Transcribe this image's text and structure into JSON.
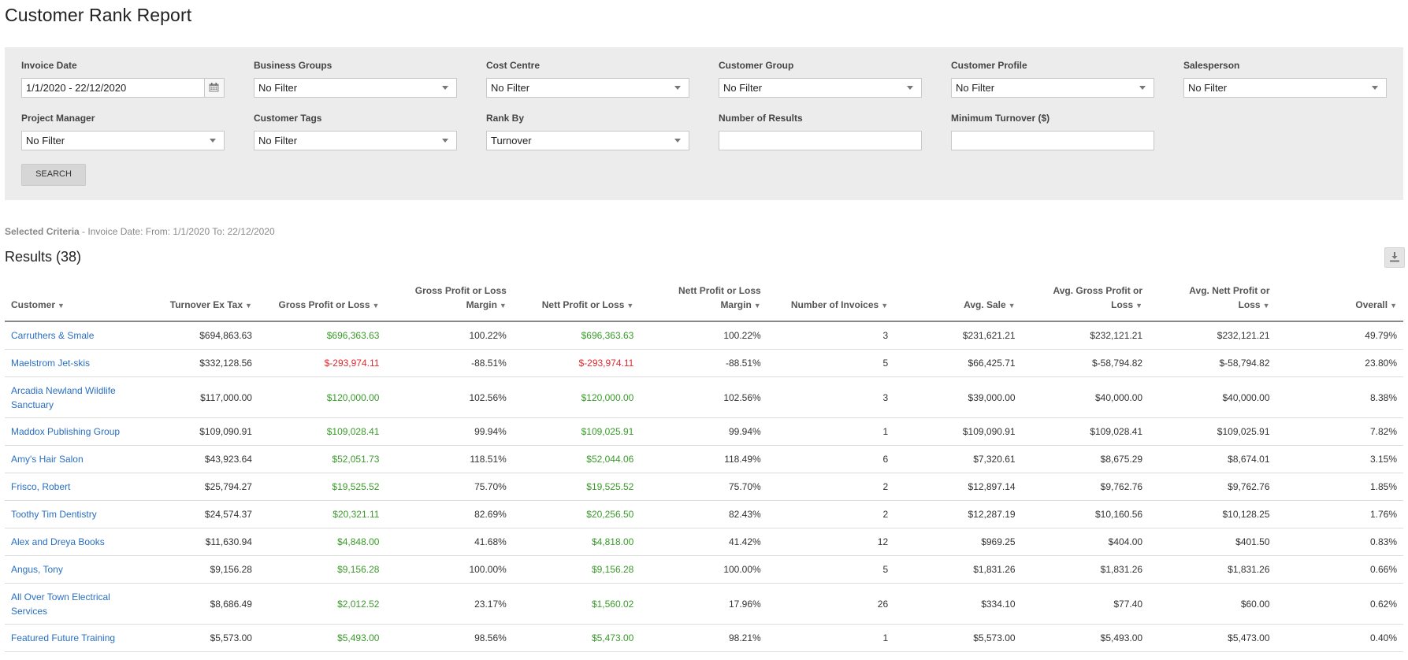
{
  "page": {
    "title": "Customer Rank Report"
  },
  "filters": {
    "invoice_date": {
      "label": "Invoice Date",
      "value": "1/1/2020 - 22/12/2020"
    },
    "business_groups": {
      "label": "Business Groups",
      "value": "No Filter"
    },
    "cost_centre": {
      "label": "Cost Centre",
      "value": "No Filter"
    },
    "customer_group": {
      "label": "Customer Group",
      "value": "No Filter"
    },
    "customer_profile": {
      "label": "Customer Profile",
      "value": "No Filter"
    },
    "salesperson": {
      "label": "Salesperson",
      "value": "No Filter"
    },
    "project_manager": {
      "label": "Project Manager",
      "value": "No Filter"
    },
    "customer_tags": {
      "label": "Customer Tags",
      "value": "No Filter"
    },
    "rank_by": {
      "label": "Rank By",
      "value": "Turnover"
    },
    "number_of_results": {
      "label": "Number of Results",
      "value": ""
    },
    "minimum_turnover": {
      "label": "Minimum Turnover ($)",
      "value": ""
    },
    "search_label": "SEARCH"
  },
  "criteria": {
    "label": "Selected Criteria",
    "text": " - Invoice Date: From: 1/1/2020 To: 22/12/2020"
  },
  "results": {
    "title": "Results (38)",
    "export_icon": "download-icon",
    "columns": {
      "customer": "Customer",
      "turnover": "Turnover Ex Tax",
      "gross": "Gross Profit or Loss",
      "gross_margin_1": "Gross Profit or Loss",
      "gross_margin_2": "Margin",
      "nett": "Nett Profit or Loss",
      "nett_margin_1": "Nett Profit or Loss",
      "nett_margin_2": "Margin",
      "invoices": "Number of Invoices",
      "avg_sale": "Avg. Sale",
      "avg_gross": "Avg. Gross Profit or Loss",
      "avg_nett": "Avg. Nett Profit or Loss",
      "overall": "Overall"
    },
    "sort_glyph": "▼",
    "rows": [
      {
        "customer": "Carruthers & Smale",
        "turnover": "$694,863.63",
        "gross": "$696,363.63",
        "gross_margin": "100.22%",
        "nett": "$696,363.63",
        "nett_margin": "100.22%",
        "invoices": "3",
        "avg_sale": "$231,621.21",
        "avg_gross": "$232,121.21",
        "avg_nett": "$232,121.21",
        "overall": "49.79%",
        "sign": "pos",
        "tall": false
      },
      {
        "customer": "Maelstrom Jet-skis",
        "turnover": "$332,128.56",
        "gross": "$-293,974.11",
        "gross_margin": "-88.51%",
        "nett": "$-293,974.11",
        "nett_margin": "-88.51%",
        "invoices": "5",
        "avg_sale": "$66,425.71",
        "avg_gross": "$-58,794.82",
        "avg_nett": "$-58,794.82",
        "overall": "23.80%",
        "sign": "neg",
        "tall": false
      },
      {
        "customer": "Arcadia Newland Wildlife Sanctuary",
        "turnover": "$117,000.00",
        "gross": "$120,000.00",
        "gross_margin": "102.56%",
        "nett": "$120,000.00",
        "nett_margin": "102.56%",
        "invoices": "3",
        "avg_sale": "$39,000.00",
        "avg_gross": "$40,000.00",
        "avg_nett": "$40,000.00",
        "overall": "8.38%",
        "sign": "pos",
        "tall": true
      },
      {
        "customer": "Maddox Publishing Group",
        "turnover": "$109,090.91",
        "gross": "$109,028.41",
        "gross_margin": "99.94%",
        "nett": "$109,025.91",
        "nett_margin": "99.94%",
        "invoices": "1",
        "avg_sale": "$109,090.91",
        "avg_gross": "$109,028.41",
        "avg_nett": "$109,025.91",
        "overall": "7.82%",
        "sign": "pos",
        "tall": false
      },
      {
        "customer": "Amy's Hair Salon",
        "turnover": "$43,923.64",
        "gross": "$52,051.73",
        "gross_margin": "118.51%",
        "nett": "$52,044.06",
        "nett_margin": "118.49%",
        "invoices": "6",
        "avg_sale": "$7,320.61",
        "avg_gross": "$8,675.29",
        "avg_nett": "$8,674.01",
        "overall": "3.15%",
        "sign": "pos",
        "tall": false
      },
      {
        "customer": "Frisco, Robert",
        "turnover": "$25,794.27",
        "gross": "$19,525.52",
        "gross_margin": "75.70%",
        "nett": "$19,525.52",
        "nett_margin": "75.70%",
        "invoices": "2",
        "avg_sale": "$12,897.14",
        "avg_gross": "$9,762.76",
        "avg_nett": "$9,762.76",
        "overall": "1.85%",
        "sign": "pos",
        "tall": false
      },
      {
        "customer": "Toothy Tim Dentistry",
        "turnover": "$24,574.37",
        "gross": "$20,321.11",
        "gross_margin": "82.69%",
        "nett": "$20,256.50",
        "nett_margin": "82.43%",
        "invoices": "2",
        "avg_sale": "$12,287.19",
        "avg_gross": "$10,160.56",
        "avg_nett": "$10,128.25",
        "overall": "1.76%",
        "sign": "pos",
        "tall": false
      },
      {
        "customer": "Alex and Dreya Books",
        "turnover": "$11,630.94",
        "gross": "$4,848.00",
        "gross_margin": "41.68%",
        "nett": "$4,818.00",
        "nett_margin": "41.42%",
        "invoices": "12",
        "avg_sale": "$969.25",
        "avg_gross": "$404.00",
        "avg_nett": "$401.50",
        "overall": "0.83%",
        "sign": "pos",
        "tall": false
      },
      {
        "customer": "Angus, Tony",
        "turnover": "$9,156.28",
        "gross": "$9,156.28",
        "gross_margin": "100.00%",
        "nett": "$9,156.28",
        "nett_margin": "100.00%",
        "invoices": "5",
        "avg_sale": "$1,831.26",
        "avg_gross": "$1,831.26",
        "avg_nett": "$1,831.26",
        "overall": "0.66%",
        "sign": "pos",
        "tall": false
      },
      {
        "customer": "All Over Town Electrical Services",
        "turnover": "$8,686.49",
        "gross": "$2,012.52",
        "gross_margin": "23.17%",
        "nett": "$1,560.02",
        "nett_margin": "17.96%",
        "invoices": "26",
        "avg_sale": "$334.10",
        "avg_gross": "$77.40",
        "avg_nett": "$60.00",
        "overall": "0.62%",
        "sign": "pos",
        "tall": true
      },
      {
        "customer": "Featured Future Training",
        "turnover": "$5,573.00",
        "gross": "$5,493.00",
        "gross_margin": "98.56%",
        "nett": "$5,473.00",
        "nett_margin": "98.21%",
        "invoices": "1",
        "avg_sale": "$5,573.00",
        "avg_gross": "$5,493.00",
        "avg_nett": "$5,473.00",
        "overall": "0.40%",
        "sign": "pos",
        "tall": false
      }
    ]
  },
  "colors": {
    "link": "#2a6fc0",
    "positive": "#3a9a2a",
    "negative": "#e0282e",
    "panel_bg": "#ececec"
  }
}
